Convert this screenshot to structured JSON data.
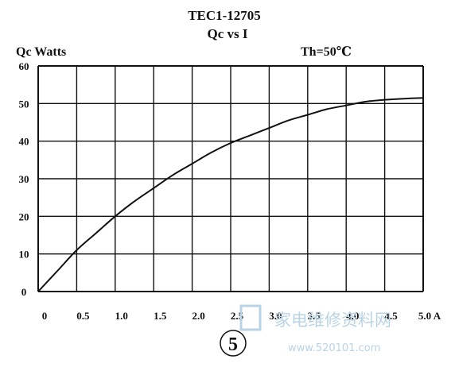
{
  "chart_data": {
    "type": "line",
    "title": "TEC1-12705",
    "subtitle": "Qc vs I",
    "ylabel": "Qc Watts",
    "annotation": "Th=50℃",
    "x_tick_labels": [
      "0",
      "0.5",
      "1.0",
      "1.5",
      "2.0",
      "2.5",
      "3.0",
      "3.5",
      "4.0",
      "4.5",
      "5.0 A"
    ],
    "y_tick_labels": [
      "0",
      "10",
      "20",
      "30",
      "40",
      "50",
      "60"
    ],
    "xlim": [
      0,
      5
    ],
    "ylim": [
      0,
      60
    ],
    "grid": true,
    "series": [
      {
        "x": [
          0,
          0.25,
          0.5,
          0.75,
          1.0,
          1.25,
          1.5,
          1.75,
          2.0,
          2.25,
          2.5,
          2.75,
          3.0,
          3.25,
          3.5,
          3.75,
          4.0,
          4.25,
          4.5,
          4.75,
          5.0
        ],
        "y": [
          0,
          5.5,
          11,
          15.5,
          20,
          24,
          27.5,
          31,
          34,
          37,
          39.5,
          41.5,
          43.5,
          45.5,
          47,
          48.5,
          49.5,
          50.5,
          51,
          51.3,
          51.5
        ],
        "color": "#111111"
      }
    ]
  },
  "footer": {
    "page_number": "5"
  },
  "watermark": {
    "text": "家电维修资料网",
    "url": "www.520101.com",
    "color": "#b9d3e6"
  }
}
